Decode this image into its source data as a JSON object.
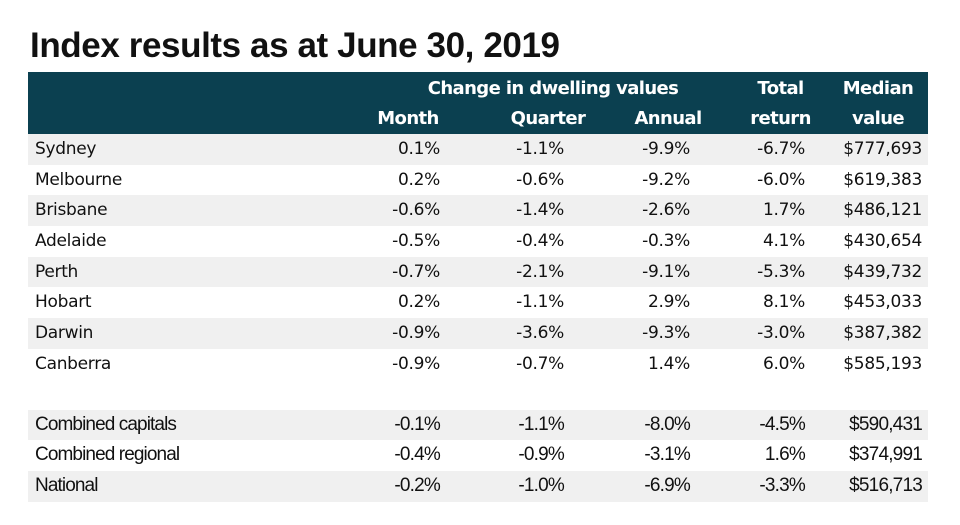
{
  "title": "Index results as at June 30, 2019",
  "header": {
    "group_label": "Change in dwelling values",
    "columns": {
      "month": "Month",
      "quarter": "Quarter",
      "annual": "Annual",
      "total_line1": "Total",
      "total_line2": "return",
      "median_line1": "Median",
      "median_line2": "value"
    }
  },
  "colors": {
    "header_bg": "#0b4050",
    "header_text": "#ffffff",
    "row_shade": "#f0f0f0"
  },
  "capitals": [
    {
      "name": "Sydney",
      "month": "0.1%",
      "quarter": "-1.1%",
      "annual": "-9.9%",
      "total": "-6.7%",
      "median": "$777,693"
    },
    {
      "name": "Melbourne",
      "month": "0.2%",
      "quarter": "-0.6%",
      "annual": "-9.2%",
      "total": "-6.0%",
      "median": "$619,383"
    },
    {
      "name": "Brisbane",
      "month": "-0.6%",
      "quarter": "-1.4%",
      "annual": "-2.6%",
      "total": "1.7%",
      "median": "$486,121"
    },
    {
      "name": "Adelaide",
      "month": "-0.5%",
      "quarter": "-0.4%",
      "annual": "-0.3%",
      "total": "4.1%",
      "median": "$430,654"
    },
    {
      "name": "Perth",
      "month": "-0.7%",
      "quarter": "-2.1%",
      "annual": "-9.1%",
      "total": "-5.3%",
      "median": "$439,732"
    },
    {
      "name": "Hobart",
      "month": "0.2%",
      "quarter": "-1.1%",
      "annual": "2.9%",
      "total": "8.1%",
      "median": "$453,033"
    },
    {
      "name": "Darwin",
      "month": "-0.9%",
      "quarter": "-3.6%",
      "annual": "-9.3%",
      "total": "-3.0%",
      "median": "$387,382"
    },
    {
      "name": "Canberra",
      "month": "-0.9%",
      "quarter": "-0.7%",
      "annual": "1.4%",
      "total": "6.0%",
      "median": "$585,193"
    }
  ],
  "aggregates": [
    {
      "name": "Combined capitals",
      "month": "-0.1%",
      "quarter": "-1.1%",
      "annual": "-8.0%",
      "total": "-4.5%",
      "median": "$590,431"
    },
    {
      "name": "Combined regional",
      "month": "-0.4%",
      "quarter": "-0.9%",
      "annual": "-3.1%",
      "total": "1.6%",
      "median": "$374,991"
    },
    {
      "name": "National",
      "month": "-0.2%",
      "quarter": "-1.0%",
      "annual": "-6.9%",
      "total": "-3.3%",
      "median": "$516,713"
    }
  ]
}
